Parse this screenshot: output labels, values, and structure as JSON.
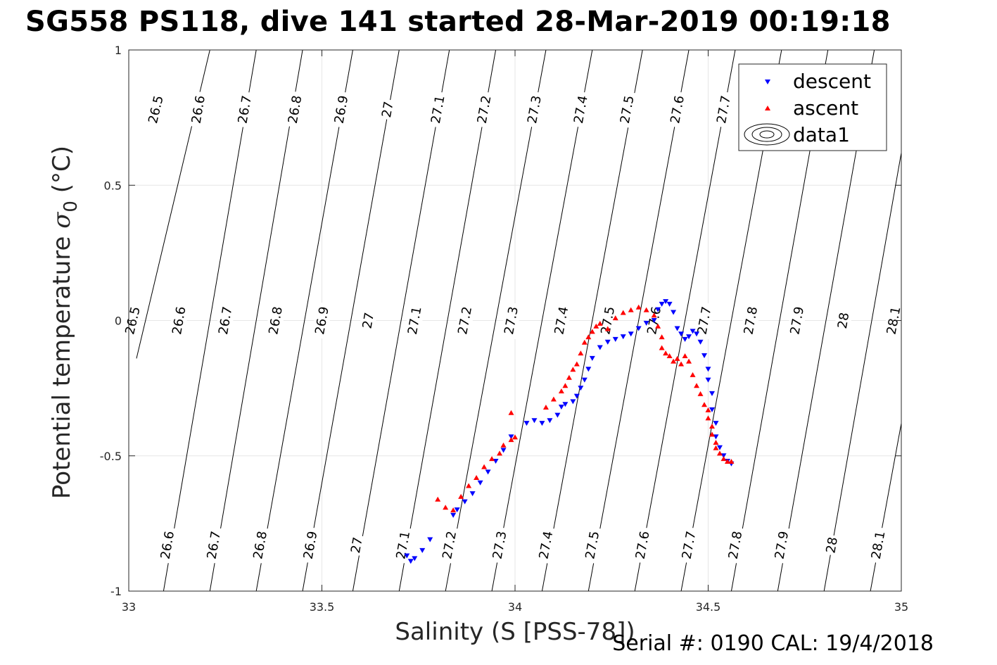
{
  "title": "SG558 PS118, dive 141 started 28-Mar-2019 00:19:18",
  "footer": "Serial #: 0190  CAL: 19/4/2018",
  "colors": {
    "descent": "#0000ff",
    "ascent": "#ff0000",
    "contour": "#000000",
    "grid": "#e6e6e6"
  },
  "chart_data": {
    "type": "scatter",
    "title": "SG558 PS118, dive 141 started 28-Mar-2019 00:19:18",
    "xlabel": "Salinity (S [PSS-78])",
    "ylabel_text": "Potential temperature ",
    "ylabel_symbol": "σ",
    "ylabel_sub": "0",
    "ylabel_unit": " (°C)",
    "xlim": [
      33,
      35
    ],
    "ylim": [
      -1,
      1
    ],
    "xticks": [
      33,
      33.5,
      34,
      34.5,
      35
    ],
    "yticks": [
      1,
      0.5,
      0,
      -0.5,
      -1
    ],
    "grid": true,
    "legend_position": "top-right",
    "legend": [
      "descent",
      "ascent",
      "data1"
    ],
    "isopycnals": [
      {
        "level": "26.5",
        "s0": 33.02,
        "t0": -0.14,
        "s1": 33.21,
        "t1": 1.0,
        "labels": [
          [
            33.07,
            0.78
          ],
          [
            33.01,
            0.0
          ]
        ]
      },
      {
        "level": "26.6",
        "s0": 33.09,
        "t0": -1.0,
        "s1": 33.33,
        "t1": 1.0,
        "labels": [
          [
            33.18,
            0.78
          ],
          [
            33.13,
            0.0
          ],
          [
            33.1,
            -0.83
          ]
        ]
      },
      {
        "level": "26.7",
        "s0": 33.21,
        "t0": -1.0,
        "s1": 33.45,
        "t1": 1.0,
        "labels": [
          [
            33.3,
            0.78
          ],
          [
            33.25,
            0.0
          ],
          [
            33.22,
            -0.83
          ]
        ]
      },
      {
        "level": "26.8",
        "s0": 33.33,
        "t0": -1.0,
        "s1": 33.58,
        "t1": 1.0,
        "labels": [
          [
            33.43,
            0.78
          ],
          [
            33.38,
            0.0
          ],
          [
            33.34,
            -0.83
          ]
        ]
      },
      {
        "level": "26.9",
        "s0": 33.45,
        "t0": -1.0,
        "s1": 33.7,
        "t1": 1.0,
        "labels": [
          [
            33.55,
            0.78
          ],
          [
            33.5,
            0.0
          ],
          [
            33.47,
            -0.83
          ]
        ]
      },
      {
        "level": "27",
        "s0": 33.58,
        "t0": -1.0,
        "s1": 33.83,
        "t1": 1.0,
        "labels": [
          [
            33.67,
            0.78
          ],
          [
            33.62,
            0.0
          ],
          [
            33.59,
            -0.83
          ]
        ]
      },
      {
        "level": "27.1",
        "s0": 33.7,
        "t0": -1.0,
        "s1": 33.95,
        "t1": 1.0,
        "labels": [
          [
            33.8,
            0.78
          ],
          [
            33.74,
            0.0
          ],
          [
            33.71,
            -0.83
          ]
        ]
      },
      {
        "level": "27.2",
        "s0": 33.82,
        "t0": -1.0,
        "s1": 34.08,
        "t1": 1.0,
        "labels": [
          [
            33.92,
            0.78
          ],
          [
            33.87,
            0.0
          ],
          [
            33.83,
            -0.83
          ]
        ]
      },
      {
        "level": "27.3",
        "s0": 33.94,
        "t0": -1.0,
        "s1": 34.2,
        "t1": 1.0,
        "labels": [
          [
            34.05,
            0.78
          ],
          [
            33.99,
            0.0
          ],
          [
            33.96,
            -0.83
          ]
        ]
      },
      {
        "level": "27.4",
        "s0": 34.07,
        "t0": -1.0,
        "s1": 34.33,
        "t1": 1.0,
        "labels": [
          [
            34.17,
            0.78
          ],
          [
            34.12,
            0.0
          ],
          [
            34.08,
            -0.83
          ]
        ]
      },
      {
        "level": "27.5",
        "s0": 34.19,
        "t0": -1.0,
        "s1": 34.45,
        "t1": 1.0,
        "labels": [
          [
            34.29,
            0.78
          ],
          [
            34.24,
            0.0
          ],
          [
            34.2,
            -0.83
          ]
        ]
      },
      {
        "level": "27.6",
        "s0": 34.31,
        "t0": -1.0,
        "s1": 34.57,
        "t1": 1.0,
        "labels": [
          [
            34.42,
            0.78
          ],
          [
            34.36,
            0.0
          ],
          [
            34.33,
            -0.83
          ]
        ]
      },
      {
        "level": "27.7",
        "s0": 34.43,
        "t0": -1.0,
        "s1": 34.69,
        "t1": 1.0,
        "labels": [
          [
            34.54,
            0.78
          ],
          [
            34.49,
            0.0
          ],
          [
            34.45,
            -0.83
          ]
        ]
      },
      {
        "level": "27.8",
        "s0": 34.56,
        "t0": -1.0,
        "s1": 34.81,
        "t1": 1.0,
        "labels": [
          [
            34.61,
            0.0
          ],
          [
            34.57,
            -0.83
          ]
        ]
      },
      {
        "level": "27.9",
        "s0": 34.68,
        "t0": -1.0,
        "s1": 34.93,
        "t1": 1.0,
        "labels": [
          [
            34.73,
            0.0
          ],
          [
            34.69,
            -0.83
          ]
        ]
      },
      {
        "level": "28",
        "s0": 34.8,
        "t0": -1.0,
        "s1": 35.0,
        "t1": 0.62,
        "labels": [
          [
            34.85,
            0.0
          ],
          [
            34.82,
            -0.83
          ]
        ]
      },
      {
        "level": "28.1",
        "s0": 34.92,
        "t0": -1.0,
        "s1": 35.0,
        "t1": -0.38,
        "labels": [
          [
            34.98,
            0.0
          ],
          [
            34.94,
            -0.83
          ]
        ]
      }
    ],
    "series": [
      {
        "name": "descent",
        "marker": "triangle-down",
        "x": [
          33.72,
          33.73,
          33.74,
          33.76,
          33.78,
          33.84,
          33.85,
          33.87,
          33.89,
          33.91,
          33.93,
          33.95,
          33.97,
          33.99,
          34.03,
          34.05,
          34.07,
          34.09,
          34.11,
          34.12,
          34.13,
          34.15,
          34.16,
          34.17,
          34.18,
          34.19,
          34.2,
          34.22,
          34.24,
          34.26,
          34.28,
          34.3,
          34.32,
          34.34,
          34.36,
          34.37,
          34.38,
          34.39,
          34.4,
          34.41,
          34.42,
          34.43,
          34.44,
          34.45,
          34.46,
          34.47,
          34.48,
          34.49,
          34.5,
          34.5,
          34.51,
          34.51,
          34.52,
          34.52,
          34.53,
          34.54,
          34.55,
          34.56
        ],
        "y": [
          -0.87,
          -0.89,
          -0.88,
          -0.85,
          -0.81,
          -0.72,
          -0.7,
          -0.67,
          -0.64,
          -0.6,
          -0.56,
          -0.52,
          -0.48,
          -0.43,
          -0.38,
          -0.37,
          -0.38,
          -0.37,
          -0.35,
          -0.32,
          -0.31,
          -0.3,
          -0.28,
          -0.25,
          -0.22,
          -0.18,
          -0.14,
          -0.1,
          -0.08,
          -0.07,
          -0.06,
          -0.05,
          -0.03,
          -0.01,
          0.0,
          0.04,
          0.06,
          0.07,
          0.06,
          0.03,
          -0.03,
          -0.05,
          -0.07,
          -0.06,
          -0.04,
          -0.05,
          -0.08,
          -0.13,
          -0.18,
          -0.22,
          -0.27,
          -0.33,
          -0.38,
          -0.43,
          -0.47,
          -0.5,
          -0.52,
          -0.53
        ]
      },
      {
        "name": "ascent",
        "marker": "triangle-up",
        "x": [
          33.8,
          33.82,
          33.84,
          33.86,
          33.88,
          33.9,
          33.92,
          33.94,
          33.96,
          33.97,
          33.99,
          34.0,
          33.99,
          34.08,
          34.1,
          34.12,
          34.13,
          34.14,
          34.15,
          34.16,
          34.17,
          34.18,
          34.19,
          34.2,
          34.21,
          34.22,
          34.24,
          34.26,
          34.28,
          34.3,
          34.32,
          34.34,
          34.36,
          34.37,
          34.38,
          34.38,
          34.39,
          34.4,
          34.41,
          34.42,
          34.43,
          34.44,
          34.45,
          34.46,
          34.47,
          34.48,
          34.49,
          34.5,
          34.5,
          34.51,
          34.51,
          34.52,
          34.52,
          34.53,
          34.54,
          34.55,
          34.56
        ],
        "y": [
          -0.66,
          -0.69,
          -0.7,
          -0.65,
          -0.61,
          -0.58,
          -0.54,
          -0.51,
          -0.49,
          -0.46,
          -0.44,
          -0.43,
          -0.34,
          -0.32,
          -0.29,
          -0.26,
          -0.24,
          -0.21,
          -0.18,
          -0.16,
          -0.12,
          -0.08,
          -0.06,
          -0.04,
          -0.02,
          -0.01,
          -0.03,
          0.01,
          0.03,
          0.04,
          0.05,
          0.04,
          0.02,
          -0.02,
          -0.06,
          -0.1,
          -0.12,
          -0.13,
          -0.15,
          -0.14,
          -0.16,
          -0.13,
          -0.15,
          -0.2,
          -0.24,
          -0.27,
          -0.31,
          -0.33,
          -0.36,
          -0.39,
          -0.42,
          -0.45,
          -0.47,
          -0.49,
          -0.51,
          -0.52,
          -0.52
        ]
      }
    ]
  }
}
